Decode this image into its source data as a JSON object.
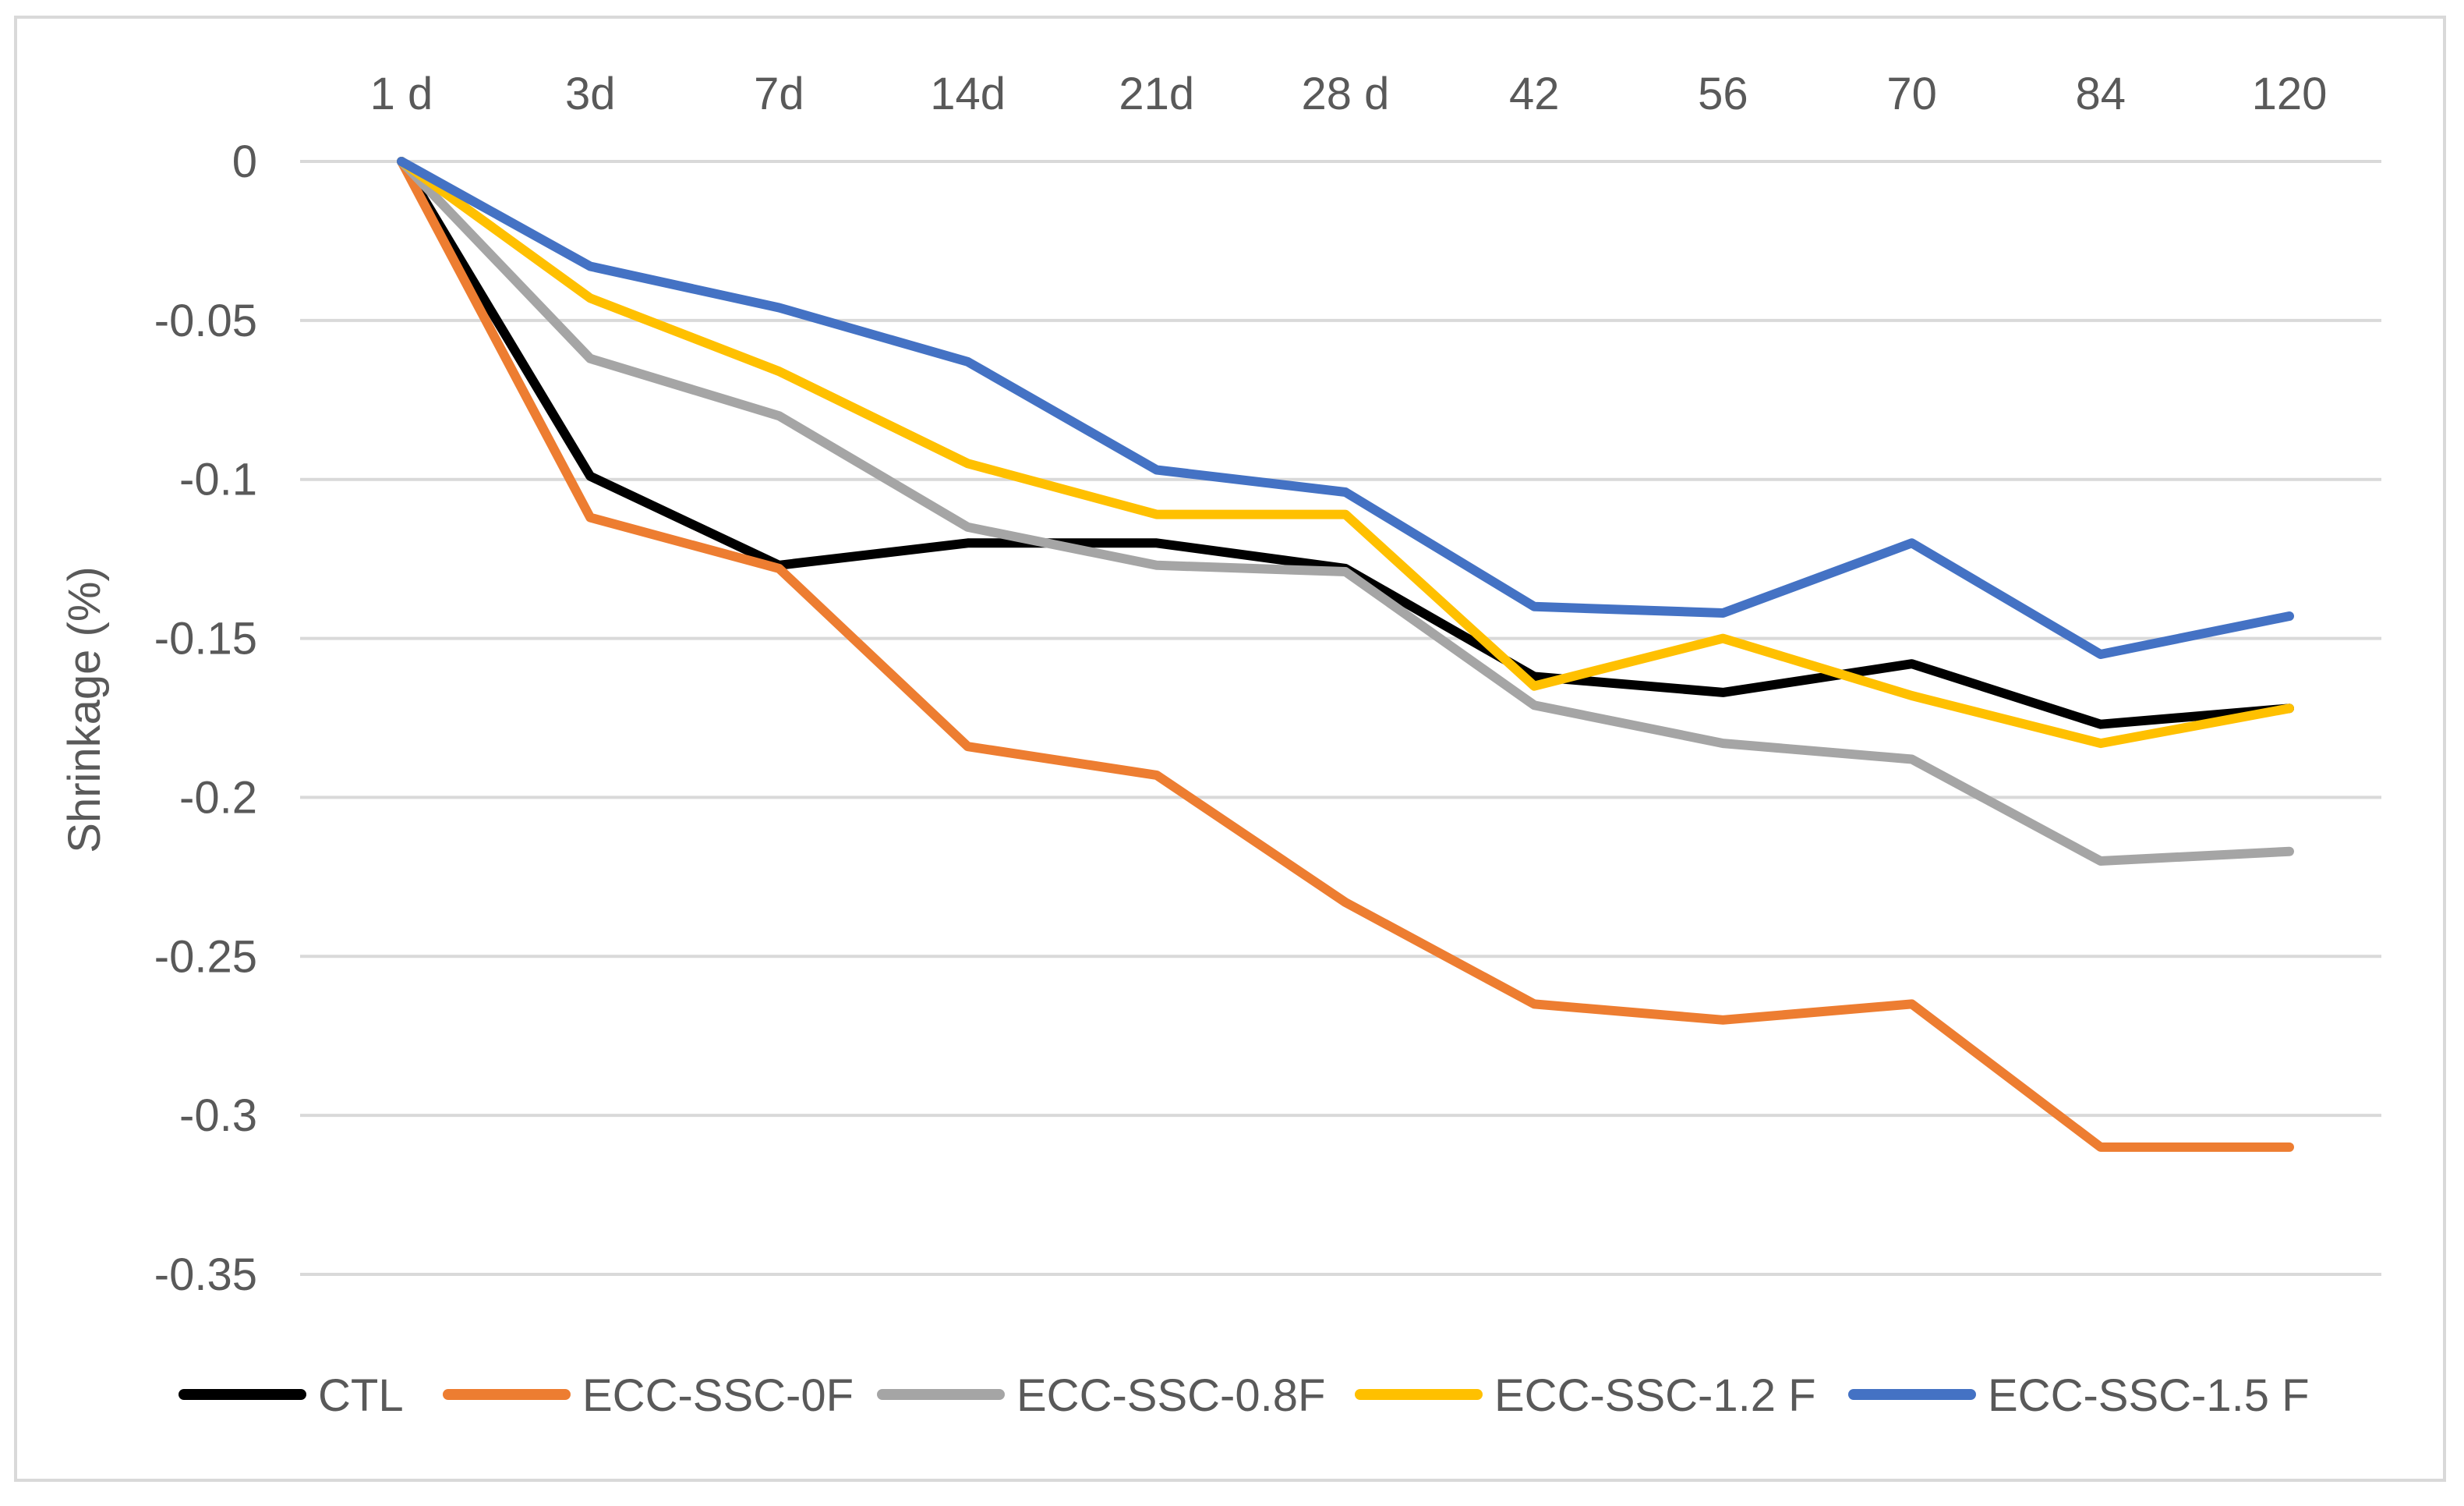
{
  "chart_data": {
    "type": "line",
    "title": "",
    "xlabel": "",
    "ylabel": "Shrinkage (%)",
    "categories": [
      "1 d",
      "3d",
      "7d",
      "14d",
      "21d",
      "28 d",
      "42",
      "56",
      "70",
      "84",
      "120"
    ],
    "ylim": [
      -0.35,
      0
    ],
    "yticks": [
      0,
      -0.05,
      -0.1,
      -0.15,
      -0.2,
      -0.25,
      -0.3,
      -0.35
    ],
    "ytick_labels": [
      "0",
      "-0.05",
      "-0.1",
      "-0.15",
      "-0.2",
      "-0.25",
      "-0.3",
      "-0.35"
    ],
    "grid": true,
    "legend_position": "bottom",
    "series": [
      {
        "name": "CTL",
        "color": "#000000",
        "values": [
          0,
          -0.099,
          -0.127,
          -0.12,
          -0.12,
          -0.128,
          -0.162,
          -0.167,
          -0.158,
          -0.177,
          -0.172
        ]
      },
      {
        "name": "ECC-SSC-0F",
        "color": "#ED7D31",
        "values": [
          0,
          -0.112,
          -0.128,
          -0.184,
          -0.193,
          -0.233,
          -0.265,
          -0.27,
          -0.265,
          -0.31,
          -0.31
        ]
      },
      {
        "name": "ECC-SSC-0.8F",
        "color": "#A5A5A5",
        "values": [
          0,
          -0.062,
          -0.08,
          -0.115,
          -0.127,
          -0.129,
          -0.171,
          -0.183,
          -0.188,
          -0.22,
          -0.217
        ]
      },
      {
        "name": "ECC-SSC-1.2 F",
        "color": "#FFC000",
        "values": [
          0,
          -0.043,
          -0.066,
          -0.095,
          -0.111,
          -0.111,
          -0.165,
          -0.15,
          -0.168,
          -0.183,
          -0.172
        ]
      },
      {
        "name": "ECC-SSC-1.5 F",
        "color": "#4472C4",
        "values": [
          0,
          -0.033,
          -0.046,
          -0.063,
          -0.097,
          -0.104,
          -0.14,
          -0.142,
          -0.12,
          -0.155,
          -0.143
        ]
      }
    ]
  }
}
